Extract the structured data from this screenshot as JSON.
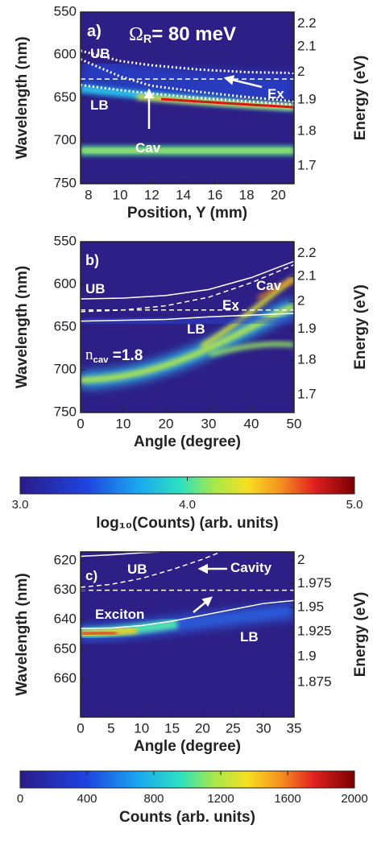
{
  "chart_data": [
    {
      "type": "heatmap",
      "xlabel": "Position, Y (mm)",
      "ylabel": "Wavelength (nm)",
      "y2label": "Energy (eV)",
      "xlim": [
        7.5,
        21
      ],
      "xticks": [
        8,
        10,
        12,
        14,
        16,
        18,
        20
      ],
      "ylim": [
        550,
        750
      ],
      "y_inverted": true,
      "yticks": [
        550,
        600,
        650,
        700,
        750
      ],
      "y2ticks": [
        2.2,
        2.1,
        2,
        1.9,
        1.8,
        1.7
      ],
      "curves": [
        {
          "style": "dotted",
          "x": [
            7.5,
            10,
            12,
            15,
            18,
            21
          ],
          "values": [
            595,
            607,
            612,
            617,
            620,
            621
          ]
        },
        {
          "style": "dotted",
          "x": [
            7.5,
            10,
            12,
            15,
            18,
            21
          ],
          "values": [
            605,
            625,
            636,
            643,
            649,
            654
          ]
        },
        {
          "style": "dotted",
          "x": [
            7.5,
            10,
            12,
            15,
            18,
            21
          ],
          "values": [
            635,
            641,
            645,
            650,
            654,
            658
          ]
        },
        {
          "style": "dashed",
          "x": [
            7.5,
            21
          ],
          "values": [
            628,
            628
          ]
        }
      ],
      "annotations": [
        {
          "text": "a)"
        },
        {
          "text": "Ω",
          "sub": "R",
          "tail": "= 80 meV"
        },
        {
          "text": "UB"
        },
        {
          "text": "LB"
        },
        {
          "text": "Cav"
        },
        {
          "text": "Ex"
        }
      ]
    },
    {
      "type": "heatmap",
      "xlabel": "Angle (degree)",
      "ylabel": "Wavelength (nm)",
      "y2label": "Energy (eV)",
      "xlim": [
        0,
        50
      ],
      "xticks": [
        0,
        10,
        20,
        30,
        40,
        50
      ],
      "ylim": [
        550,
        750
      ],
      "y_inverted": true,
      "yticks": [
        550,
        600,
        650,
        700,
        750
      ],
      "y2ticks": [
        2.2,
        2.1,
        2,
        1.9,
        1.8,
        1.7
      ],
      "curves": [
        {
          "style": "solid",
          "x": [
            0,
            10,
            20,
            30,
            40,
            50
          ],
          "values": [
            617,
            616,
            613,
            606,
            592,
            573
          ]
        },
        {
          "style": "dashed",
          "x": [
            0,
            10,
            20,
            30,
            40,
            50
          ],
          "values": [
            632,
            630,
            625,
            615,
            598,
            577
          ]
        },
        {
          "style": "dashed",
          "x": [
            0,
            50
          ],
          "values": [
            630,
            630
          ]
        },
        {
          "style": "solid",
          "x": [
            0,
            10,
            20,
            30,
            40,
            50
          ],
          "values": [
            643,
            642,
            641,
            638,
            636,
            634
          ]
        }
      ],
      "annotations": [
        {
          "text": "b)"
        },
        {
          "text": "UB"
        },
        {
          "text": "Cav"
        },
        {
          "text": "Ex"
        },
        {
          "text": "LB"
        },
        {
          "text": "n",
          "sub": "cav",
          "tail": " =1.8"
        }
      ],
      "colorbar": {
        "title": "log₁₀(Counts) (arb. units)",
        "lim": [
          3,
          5
        ],
        "ticks": [
          {
            "value": 3,
            "label": "3.0"
          },
          {
            "value": 4,
            "label": "4.0"
          },
          {
            "value": 5,
            "label": "5.0"
          }
        ]
      }
    },
    {
      "type": "heatmap",
      "xlabel": "Angle (degree)",
      "ylabel": "Wavelength (nm)",
      "y2label": "Energy (eV)",
      "xlim": [
        0,
        35
      ],
      "xticks": [
        0,
        5,
        10,
        15,
        20,
        25,
        30,
        35
      ],
      "ylim": [
        617,
        673
      ],
      "y_inverted": true,
      "yticks": [
        620,
        630,
        640,
        650,
        660
      ],
      "y2ticks": [
        2,
        1.975,
        1.95,
        1.925,
        1.9,
        1.875
      ],
      "curves": [
        {
          "style": "solid",
          "x": [
            0,
            5,
            10,
            13
          ],
          "values": [
            618.5,
            618,
            617.3,
            617
          ]
        },
        {
          "style": "dashed",
          "x": [
            0,
            5,
            10,
            15,
            20,
            23
          ],
          "values": [
            629,
            628,
            626,
            623,
            619.5,
            617
          ]
        },
        {
          "style": "dashed",
          "x": [
            0,
            35
          ],
          "values": [
            630,
            630
          ]
        },
        {
          "style": "solid",
          "x": [
            0,
            5,
            10,
            15,
            20,
            25,
            30,
            35
          ],
          "values": [
            643,
            642.8,
            642,
            640.5,
            638.5,
            636.5,
            634.5,
            633.5
          ]
        }
      ],
      "annotations": [
        {
          "text": "c)"
        },
        {
          "text": "UB"
        },
        {
          "text": "Cavity"
        },
        {
          "text": "Exciton"
        },
        {
          "text": "LB"
        }
      ],
      "colorbar": {
        "title": "Counts (arb. units)",
        "lim": [
          0,
          2000
        ],
        "ticks": [
          0,
          400,
          800,
          1200,
          1600,
          2000
        ]
      }
    }
  ]
}
